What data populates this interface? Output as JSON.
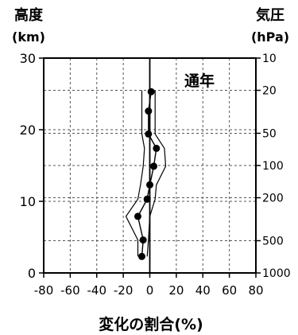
{
  "chart_data": {
    "type": "line",
    "title": "通年",
    "xlabel": "変化の割合(%)",
    "ylabel_left": [
      "高度",
      "(km)"
    ],
    "ylabel_right": [
      "気圧",
      "(hPa)"
    ],
    "xlim": [
      -80,
      80
    ],
    "ylim": [
      0,
      30
    ],
    "x_ticks": [
      "-80",
      "-60",
      "-40",
      "-20",
      "0",
      "20",
      "40",
      "60",
      "80"
    ],
    "y_ticks": [
      "0",
      "10",
      "20",
      "30"
    ],
    "pressure_ticks": [
      {
        "label": "10",
        "altitude_km": 30
      },
      {
        "label": "20",
        "altitude_km": 25.5
      },
      {
        "label": "50",
        "altitude_km": 19.5
      },
      {
        "label": "100",
        "altitude_km": 15
      },
      {
        "label": "200",
        "altitude_km": 10.5
      },
      {
        "label": "500",
        "altitude_km": 4.5
      },
      {
        "label": "1000",
        "altitude_km": 0
      }
    ],
    "grid": true,
    "series": [
      {
        "role": "mean",
        "marker": "dot",
        "points": [
          {
            "x": 1,
            "y": 25.3
          },
          {
            "x": -1,
            "y": 22.6
          },
          {
            "x": -1,
            "y": 19.4
          },
          {
            "x": 5,
            "y": 17.4
          },
          {
            "x": 3,
            "y": 14.9
          },
          {
            "x": 0,
            "y": 12.3
          },
          {
            "x": -2,
            "y": 10.3
          },
          {
            "x": -9,
            "y": 7.9
          },
          {
            "x": -5,
            "y": 4.6
          },
          {
            "x": -6,
            "y": 2.3
          }
        ]
      },
      {
        "role": "lower-bound",
        "points": [
          {
            "x": -6,
            "y": 25.5
          },
          {
            "x": -6,
            "y": 22.6
          },
          {
            "x": -6,
            "y": 19.4
          },
          {
            "x": -4,
            "y": 17.4
          },
          {
            "x": -5,
            "y": 14.9
          },
          {
            "x": -7,
            "y": 12.3
          },
          {
            "x": -9,
            "y": 10.3
          },
          {
            "x": -18,
            "y": 7.9
          },
          {
            "x": -9,
            "y": 4.6
          },
          {
            "x": -9,
            "y": 2.3
          }
        ]
      },
      {
        "role": "upper-bound",
        "points": [
          {
            "x": 4,
            "y": 25.5
          },
          {
            "x": 4,
            "y": 22.6
          },
          {
            "x": 4,
            "y": 19.4
          },
          {
            "x": 11,
            "y": 17.4
          },
          {
            "x": 12,
            "y": 14.9
          },
          {
            "x": 5,
            "y": 12.3
          },
          {
            "x": 4,
            "y": 10.3
          },
          {
            "x": 0,
            "y": 7.9
          },
          {
            "x": -1,
            "y": 4.6
          },
          {
            "x": -2,
            "y": 2.3
          }
        ]
      }
    ]
  }
}
